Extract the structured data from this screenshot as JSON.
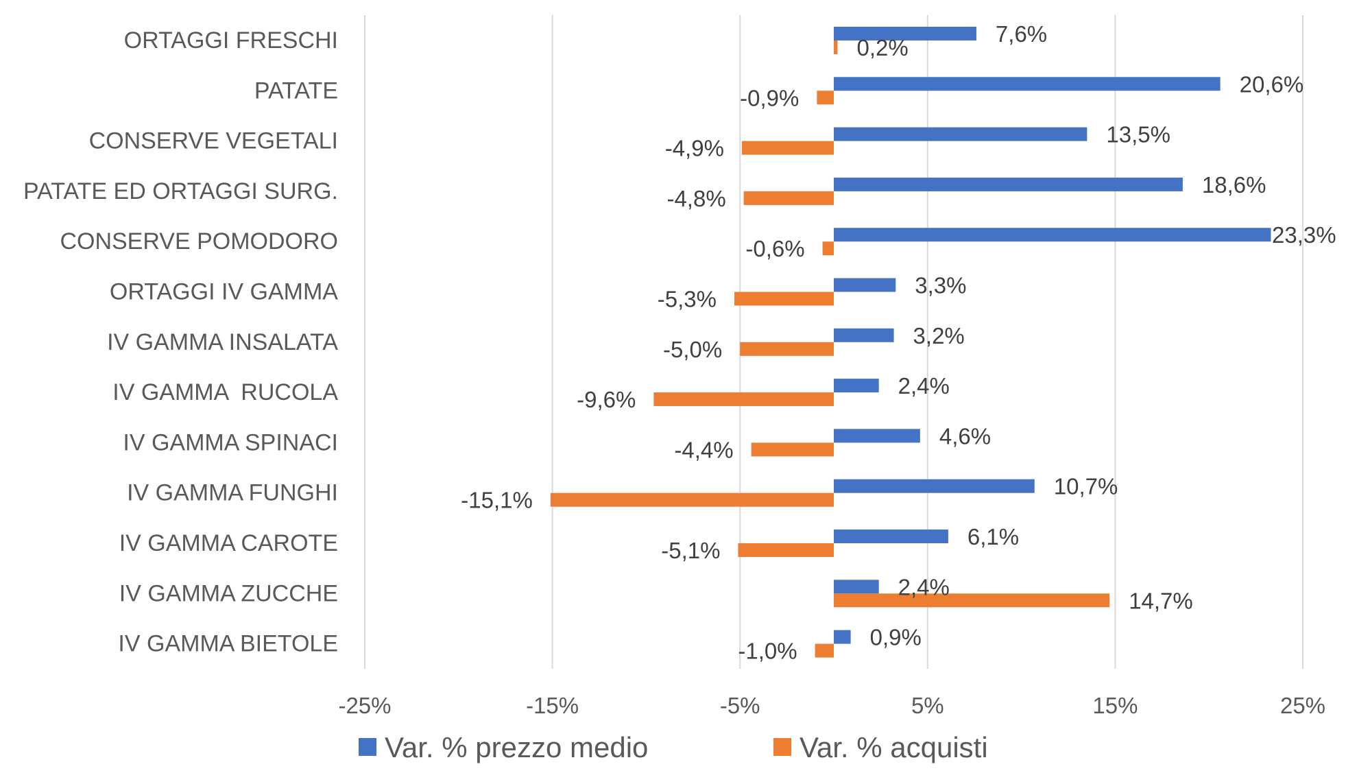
{
  "chart_data": {
    "type": "bar",
    "orientation": "horizontal",
    "categories": [
      "ORTAGGI FRESCHI",
      "PATATE",
      "CONSERVE VEGETALI",
      "PATATE ED ORTAGGI SURG.",
      "CONSERVE POMODORO",
      "ORTAGGI IV GAMMA",
      "IV GAMMA INSALATA",
      "IV GAMMA  RUCOLA",
      "IV GAMMA SPINACI",
      "IV GAMMA FUNGHI",
      "IV GAMMA CAROTE",
      "IV GAMMA ZUCCHE",
      "IV GAMMA BIETOLE"
    ],
    "series": [
      {
        "name": "Var. % prezzo medio",
        "color": "#4472C4",
        "values": [
          7.6,
          20.6,
          13.5,
          18.6,
          23.3,
          3.3,
          3.2,
          2.4,
          4.6,
          10.7,
          6.1,
          2.4,
          0.9
        ],
        "labels": [
          "7,6%",
          "20,6%",
          "13,5%",
          "18,6%",
          "23,3%",
          "3,3%",
          "3,2%",
          "2,4%",
          "4,6%",
          "10,7%",
          "6,1%",
          "2,4%",
          "0,9%"
        ]
      },
      {
        "name": "Var. % acquisti",
        "color": "#ED7D31",
        "values": [
          0.2,
          -0.9,
          -4.9,
          -4.8,
          -0.6,
          -5.3,
          -5.0,
          -9.6,
          -4.4,
          -15.1,
          -5.1,
          14.7,
          -1.0
        ],
        "labels": [
          "0,2%",
          "-0,9%",
          "-4,9%",
          "-4,8%",
          "-0,6%",
          "-5,3%",
          "-5,0%",
          "-9,6%",
          "-4,4%",
          "-15,1%",
          "-5,1%",
          "14,7%",
          "-1,0%"
        ]
      }
    ],
    "xlim": [
      -25,
      25
    ],
    "x_ticks": [
      -25,
      -15,
      -5,
      5,
      15,
      25
    ],
    "x_tick_labels": [
      "-25%",
      "-15%",
      "-5%",
      "5%",
      "15%",
      "25%"
    ],
    "grid": true,
    "legend_position": "bottom",
    "title": "",
    "xlabel": "",
    "ylabel": ""
  }
}
